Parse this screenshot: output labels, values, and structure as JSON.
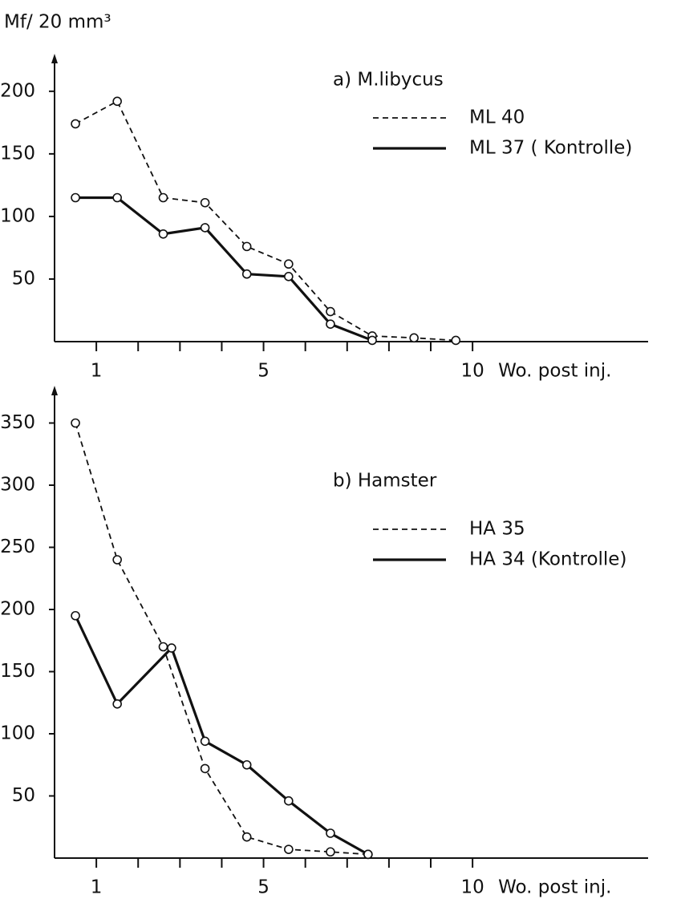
{
  "chart_data": [
    {
      "type": "line",
      "title": "a) M.libycus",
      "y_label": "Mf/ 20 mm³",
      "x_label": "Wo. post inj.",
      "xlim": [
        0,
        14.2
      ],
      "xticks": [
        1,
        5,
        10
      ],
      "xminor_ticks": [
        2,
        3,
        4,
        6,
        7,
        8,
        9
      ],
      "ylim": [
        0,
        230
      ],
      "yticks": [
        50,
        100,
        150,
        200
      ],
      "series": [
        {
          "name": "ML 40",
          "style": "dashed",
          "color": "#111111",
          "x": [
            0.5,
            1.5,
            2.6,
            3.6,
            4.6,
            5.6,
            6.6,
            7.6,
            8.6,
            9.6
          ],
          "values": [
            174,
            192,
            115,
            111,
            76,
            62,
            24,
            4.5,
            3,
            1
          ]
        },
        {
          "name": "ML 37 ( Kontrolle)",
          "style": "solid",
          "color": "#111111",
          "x": [
            0.5,
            1.5,
            2.6,
            3.6,
            4.6,
            5.6,
            6.6,
            7.6
          ],
          "values": [
            115,
            115,
            86,
            91,
            54,
            52,
            14,
            1
          ]
        }
      ]
    },
    {
      "type": "line",
      "title": "b) Hamster",
      "x_label": "Wo. post inj.",
      "xlim": [
        0,
        14.2
      ],
      "xticks": [
        1,
        5,
        10
      ],
      "xminor_ticks": [
        2,
        3,
        4,
        6,
        7,
        8,
        9
      ],
      "ylim": [
        0,
        380
      ],
      "yticks": [
        50,
        100,
        150,
        200,
        250,
        300,
        350
      ],
      "series": [
        {
          "name": "HA  35",
          "style": "dashed",
          "color": "#111111",
          "x": [
            0.5,
            1.5,
            2.6,
            3.6,
            4.6,
            5.6,
            6.6,
            7.5
          ],
          "values": [
            350,
            240,
            170,
            72,
            17,
            7,
            5,
            3
          ]
        },
        {
          "name": "HA  34 (Kontrolle)",
          "style": "solid",
          "color": "#111111",
          "x": [
            0.5,
            1.5,
            2.8,
            3.6,
            4.6,
            5.6,
            6.6,
            7.5
          ],
          "values": [
            195,
            124,
            169,
            94,
            75,
            46,
            20,
            3
          ]
        }
      ]
    }
  ]
}
